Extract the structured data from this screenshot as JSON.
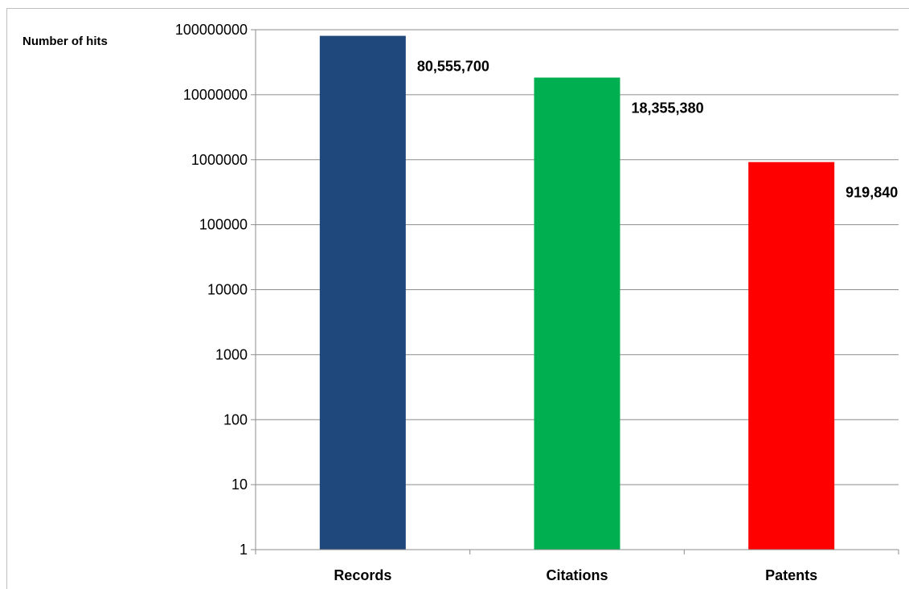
{
  "chart_data": {
    "type": "bar",
    "title": "",
    "ylabel": "Number of hits",
    "xlabel": "",
    "yscale": "log",
    "ylim": [
      1,
      100000000
    ],
    "yticks": [
      "1",
      "10",
      "100",
      "1000",
      "10000",
      "100000",
      "1000000",
      "10000000",
      "100000000"
    ],
    "grid": true,
    "legend": "none",
    "categories": [
      "Records",
      "Citations",
      "Patents"
    ],
    "values": [
      80555700,
      18355380,
      919840
    ],
    "data_labels": [
      "80,555,700",
      "18,355,380",
      "919,840"
    ],
    "colors": [
      "#1f497d",
      "#00b050",
      "#ff0000"
    ]
  }
}
